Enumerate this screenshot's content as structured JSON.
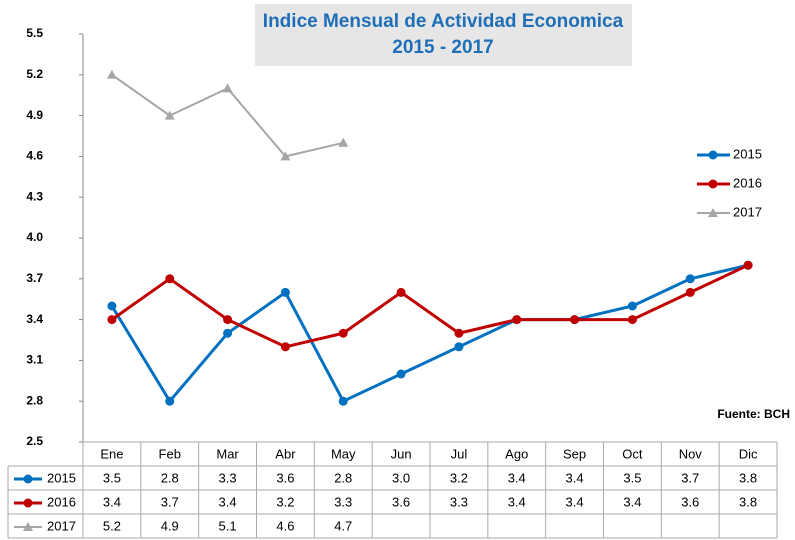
{
  "chart_data": {
    "type": "line",
    "title": "Indice Mensual de Actividad Economica",
    "subtitle": "2015 - 2017",
    "annotation": "Fuente: BCH",
    "categories": [
      "Ene",
      "Feb",
      "Mar",
      "Abr",
      "May",
      "Jun",
      "Jul",
      "Ago",
      "Sep",
      "Oct",
      "Nov",
      "Dic"
    ],
    "series": [
      {
        "name": "2015",
        "color": "#0070c0",
        "marker": "circle",
        "values": [
          3.5,
          2.8,
          3.3,
          3.6,
          2.8,
          3.0,
          3.2,
          3.4,
          3.4,
          3.5,
          3.7,
          3.8
        ],
        "value_labels": [
          "3.5",
          "2.8",
          "3.3",
          "3.6",
          "2.8",
          "3.0",
          "3.2",
          "3.4",
          "3.4",
          "3.5",
          "3.7",
          "3.8"
        ]
      },
      {
        "name": "2016",
        "color": "#c00000",
        "marker": "circle",
        "values": [
          3.4,
          3.7,
          3.4,
          3.2,
          3.3,
          3.6,
          3.3,
          3.4,
          3.4,
          3.4,
          3.6,
          3.8
        ]
      },
      {
        "name": "2017",
        "color": "#a6a6a6",
        "marker": "triangle",
        "values": [
          5.2,
          4.9,
          5.1,
          4.6,
          4.7,
          null,
          null,
          null,
          null,
          null,
          null,
          null
        ]
      }
    ],
    "ylim": [
      2.5,
      5.5
    ],
    "yticks": [
      2.5,
      2.8,
      3.1,
      3.4,
      3.7,
      {
        "value": 4,
        "label": "4.0"
      },
      4.3,
      4.6,
      4.9,
      5.2,
      5.5
    ],
    "grid": false,
    "legend": "right",
    "data_table": true
  }
}
